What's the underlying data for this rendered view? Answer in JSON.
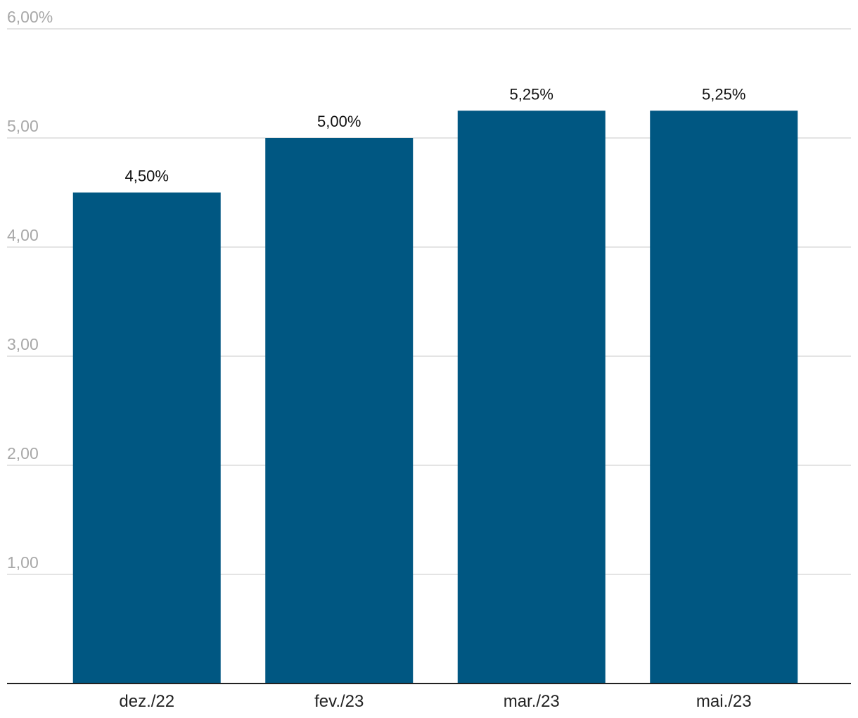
{
  "chart_data": {
    "type": "bar",
    "categories": [
      "dez./22",
      "fev./23",
      "mar./23",
      "mai./23"
    ],
    "values": [
      4.5,
      5.0,
      5.25,
      5.25
    ],
    "data_labels": [
      "4,50%",
      "5,00%",
      "5,25%",
      "5,25%"
    ],
    "yticks": [
      {
        "value": 1,
        "label": "1,00"
      },
      {
        "value": 2,
        "label": "2,00"
      },
      {
        "value": 3,
        "label": "3,00"
      },
      {
        "value": 4,
        "label": "4,00"
      },
      {
        "value": 5,
        "label": "5,00"
      },
      {
        "value": 6,
        "label": "6,00%"
      }
    ],
    "ylim": [
      0,
      6
    ],
    "grid": true,
    "bar_color": "#005782",
    "title": "",
    "xlabel": "",
    "ylabel": ""
  }
}
